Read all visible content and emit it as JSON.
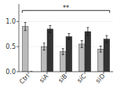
{
  "chart_data": {
    "type": "bar",
    "categories": [
      "Ctrl",
      "siA",
      "siB",
      "siC",
      "siD"
    ],
    "series": [
      {
        "color": "#bbbbbb",
        "values": [
          0.9,
          0.5,
          0.4,
          0.55,
          0.45
        ],
        "errors": [
          0.08,
          0.07,
          0.06,
          0.07,
          0.06
        ]
      },
      {
        "color": "#333333",
        "values": [
          0.0,
          0.85,
          0.7,
          0.8,
          0.65
        ],
        "errors": [
          0.0,
          0.07,
          0.06,
          0.08,
          0.07
        ]
      }
    ],
    "ylim": [
      0,
      1.35
    ],
    "yticks": [
      {
        "value": 0.0,
        "label": "0.0"
      },
      {
        "value": 0.5,
        "label": "0.5"
      },
      {
        "value": 1.0,
        "label": "1.0"
      }
    ],
    "annotations": [
      {
        "text": "**",
        "y": 1.22
      }
    ]
  }
}
